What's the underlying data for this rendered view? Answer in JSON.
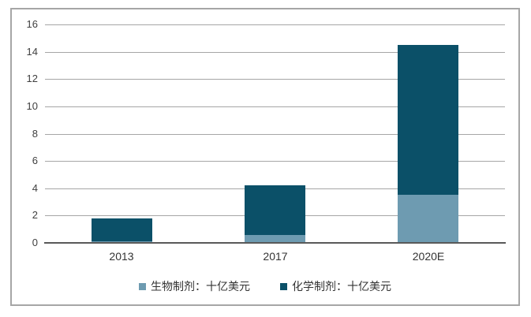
{
  "chart_data": {
    "type": "bar",
    "stacked": true,
    "title": "",
    "categories": [
      "2013",
      "2017",
      "2020E"
    ],
    "series": [
      {
        "name": "生物制剂：十亿美元",
        "color": "#6e9bb1",
        "values": [
          0.1,
          0.6,
          3.5
        ]
      },
      {
        "name": "化学制剂：十亿美元",
        "color": "#0b5068",
        "values": [
          1.7,
          3.6,
          11.0
        ]
      }
    ],
    "totals": [
      1.8,
      4.2,
      14.5
    ],
    "ylim": [
      0,
      16
    ],
    "yticks": [
      0,
      2,
      4,
      6,
      8,
      10,
      12,
      14,
      16
    ],
    "xlabel": "",
    "ylabel": "",
    "grid": "horizontal",
    "legend_position": "bottom"
  },
  "colors": {
    "series_biologics": "#6e9bb1",
    "series_chemical": "#0b5068",
    "gridline": "#a6a6a6",
    "axis_line": "#595959",
    "frame_border": "#a6a6a6",
    "text": "#404040",
    "background": "#ffffff"
  }
}
